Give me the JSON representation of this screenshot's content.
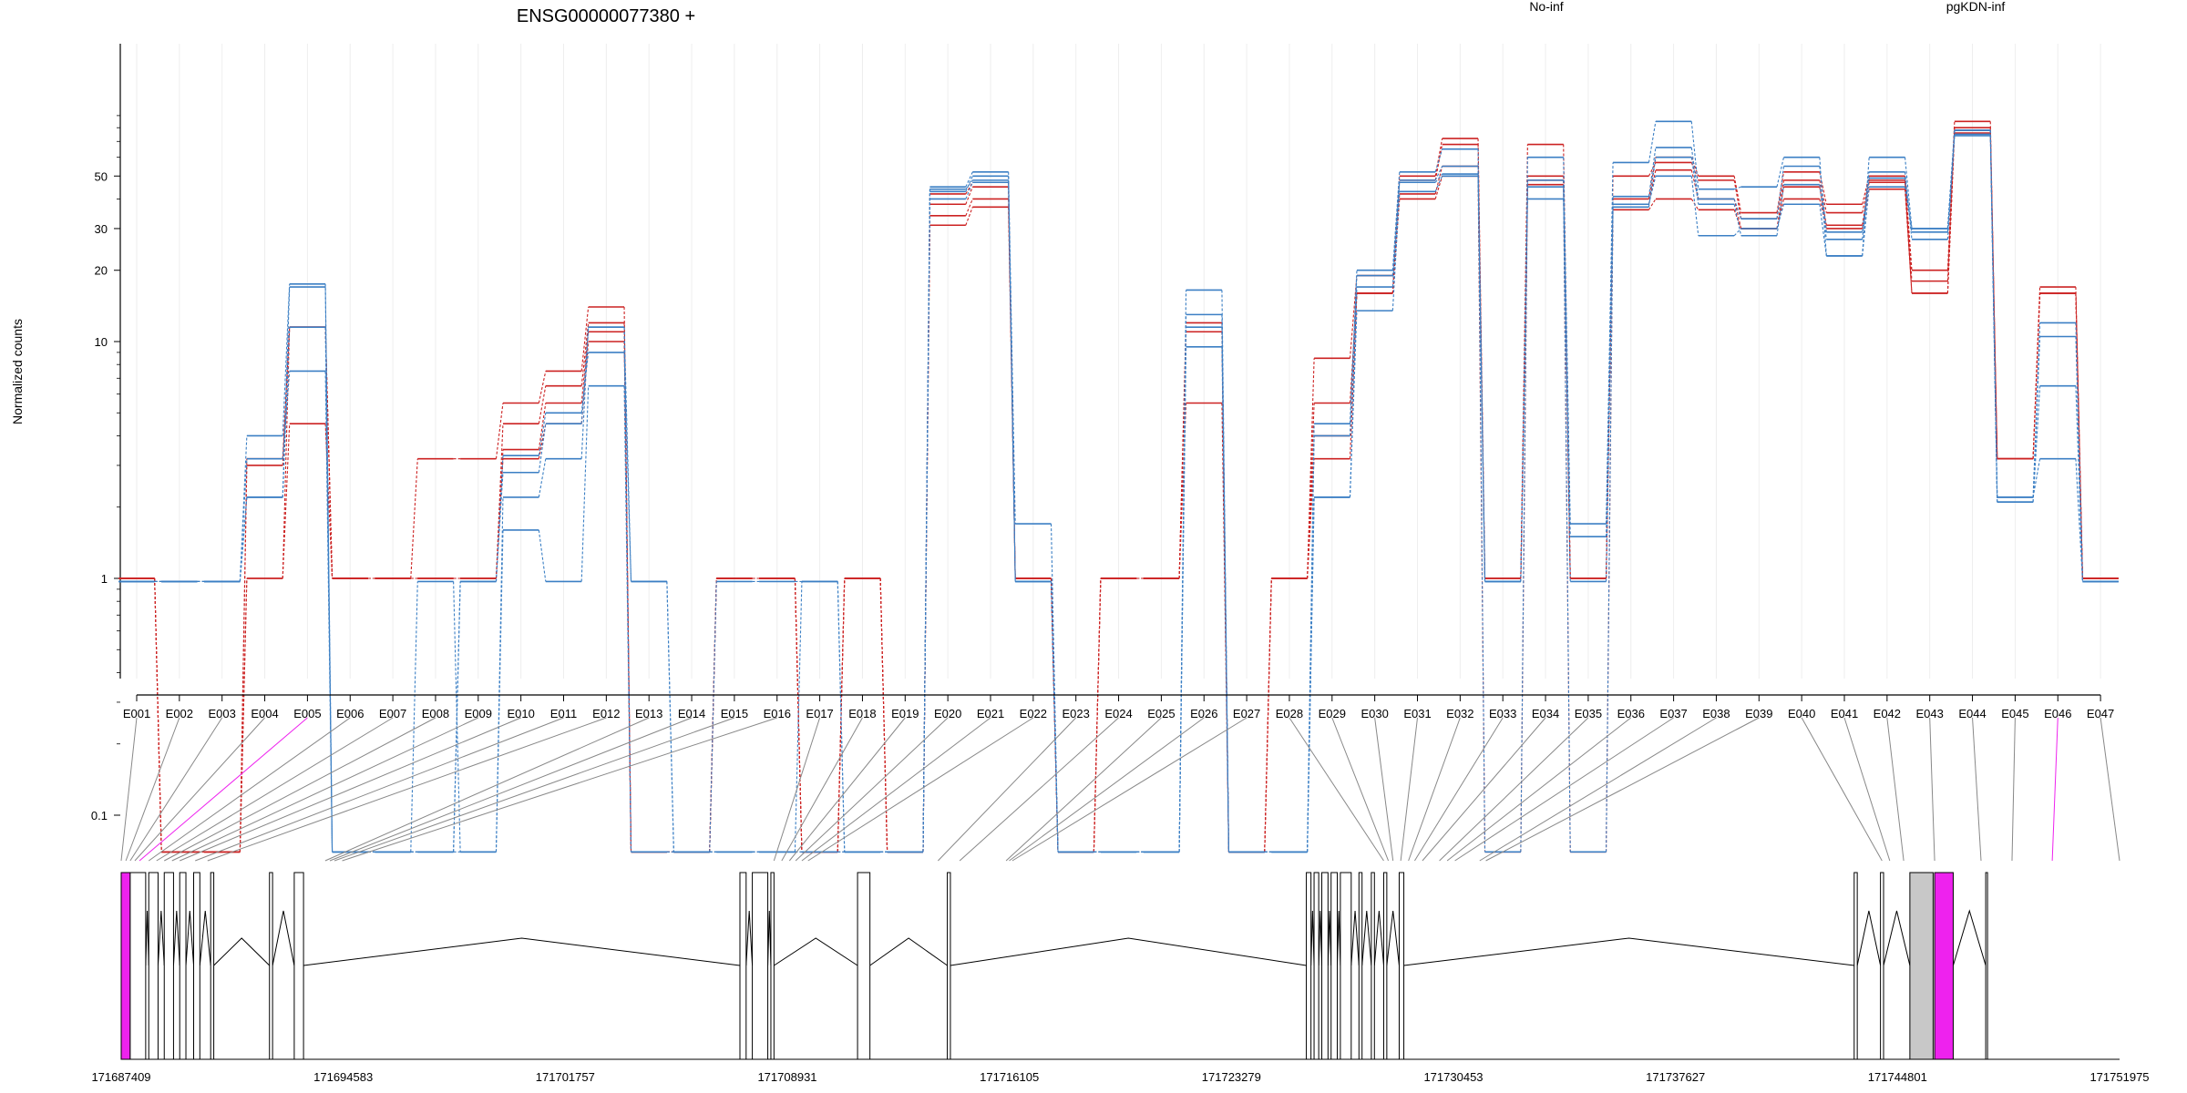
{
  "chart_data": {
    "type": "line",
    "title": "ENSG00000077380 +",
    "ylabel": "Normalized counts",
    "xlabel": "",
    "y_scale": "log",
    "y_ticks": [
      "0.1",
      "1",
      "10",
      "20",
      "30",
      "50"
    ],
    "legend": [
      {
        "name": "No-inf",
        "color": "#cc2222"
      },
      {
        "name": "pgKDN-inf",
        "color": "#3b7fc4"
      }
    ],
    "legend_placement": "top",
    "categories": [
      "E001",
      "E002",
      "E003",
      "E004",
      "E005",
      "E006",
      "E007",
      "E008",
      "E009",
      "E010",
      "E011",
      "E012",
      "E013",
      "E014",
      "E015",
      "E016",
      "E017",
      "E018",
      "E019",
      "E020",
      "E021",
      "E022",
      "E023",
      "E024",
      "E025",
      "E026",
      "E027",
      "E028",
      "E029",
      "E030",
      "E031",
      "E032",
      "E033",
      "E034",
      "E035",
      "E036",
      "E037",
      "E038",
      "E039",
      "E040",
      "E041",
      "E042",
      "E043",
      "E044",
      "E045",
      "E046",
      "E047"
    ],
    "series": [
      {
        "group": "No-inf",
        "color": "#cc2222",
        "values": [
          1,
          0.07,
          0.07,
          3.2,
          11.5,
          1,
          1,
          3.2,
          3.2,
          5.5,
          7.5,
          14,
          0.07,
          0.07,
          1,
          1,
          0.07,
          1,
          0.07,
          42,
          47,
          1,
          0.07,
          1,
          1,
          12,
          0.07,
          1,
          8.5,
          19,
          50,
          72,
          1,
          68,
          1,
          40,
          60,
          50,
          35,
          52,
          38,
          50,
          20,
          85,
          3.2,
          17,
          1
        ]
      },
      {
        "group": "No-inf",
        "color": "#cc2222",
        "values": [
          1,
          0.07,
          0.07,
          1,
          11.5,
          1,
          1,
          1,
          1,
          4.5,
          6.5,
          12,
          0.07,
          0.07,
          1,
          1,
          0.07,
          1,
          0.07,
          38,
          45,
          1,
          0.07,
          1,
          1,
          11,
          0.07,
          1,
          5.5,
          16,
          48,
          68,
          1,
          50,
          1,
          50,
          57,
          48,
          33,
          48,
          35,
          48,
          18,
          80,
          3.2,
          16,
          1
        ]
      },
      {
        "group": "No-inf",
        "color": "#cc2222",
        "values": [
          1,
          0.07,
          0.07,
          3,
          11.5,
          1,
          1,
          1,
          1,
          3.5,
          5.5,
          11,
          0.07,
          0.07,
          1,
          1,
          0.07,
          1,
          0.07,
          34,
          40,
          1,
          0.07,
          1,
          1,
          11,
          0.07,
          1,
          4,
          16,
          42,
          55,
          1,
          48,
          1,
          38,
          53,
          40,
          30,
          45,
          31,
          47,
          16,
          78,
          3.2,
          16,
          1
        ]
      },
      {
        "group": "No-inf",
        "color": "#cc2222",
        "values": [
          1,
          0.07,
          0.07,
          1,
          4.5,
          1,
          1,
          1,
          1,
          3.2,
          4.5,
          10,
          0.07,
          0.07,
          1,
          1,
          0.07,
          1,
          0.07,
          31,
          37,
          1,
          0.07,
          1,
          1,
          5.5,
          0.07,
          1,
          3.2,
          16,
          40,
          50,
          0.07,
          46,
          0.07,
          36,
          40,
          36,
          30,
          40,
          30,
          44,
          16,
          76,
          3.2,
          16,
          1
        ]
      },
      {
        "group": "pgKDN-inf",
        "color": "#3b7fc4",
        "values": [
          0.97,
          0.97,
          0.97,
          4,
          17.5,
          0.07,
          0.07,
          0.07,
          0.97,
          3.3,
          5,
          9,
          0.97,
          0.07,
          0.07,
          0.07,
          0.97,
          0.07,
          0.07,
          45,
          52,
          1.7,
          0.07,
          0.07,
          0.07,
          16.5,
          0.07,
          0.07,
          4.5,
          20,
          52,
          65,
          0.07,
          60,
          1.7,
          57,
          85,
          44,
          45,
          60,
          23,
          60,
          30,
          78,
          2.2,
          12,
          0.97
        ]
      },
      {
        "group": "pgKDN-inf",
        "color": "#3b7fc4",
        "values": [
          0.97,
          0.97,
          0.97,
          2.2,
          17,
          0.07,
          0.07,
          0.07,
          0.97,
          2.8,
          4.5,
          11.5,
          0.97,
          0.07,
          0.97,
          0.97,
          0.97,
          0.07,
          0.07,
          43,
          50,
          0.97,
          0.07,
          0.07,
          0.07,
          13,
          0.07,
          0.07,
          4,
          19,
          48,
          55,
          0.97,
          40,
          1.5,
          41,
          66,
          40,
          33,
          55,
          29,
          52,
          27,
          74,
          2.1,
          10.5,
          0.97
        ]
      },
      {
        "group": "pgKDN-inf",
        "color": "#3b7fc4",
        "values": [
          0.97,
          0.97,
          0.97,
          3.2,
          7.5,
          0.07,
          0.07,
          0.97,
          0.07,
          1.6,
          0.97,
          6.5,
          0.07,
          0.07,
          0.07,
          0.07,
          0.07,
          0.07,
          0.07,
          40,
          47,
          0.97,
          0.07,
          0.07,
          0.07,
          11.5,
          0.07,
          0.07,
          2.2,
          13.5,
          43,
          50,
          0.97,
          48,
          0.07,
          38,
          50,
          28,
          30,
          38,
          23,
          45,
          30,
          78,
          2.1,
          6.5,
          0.97
        ]
      },
      {
        "group": "pgKDN-inf",
        "color": "#3b7fc4",
        "values": [
          0.97,
          0.97,
          0.97,
          2.2,
          11.5,
          0.07,
          0.07,
          0.07,
          0.07,
          2.2,
          3.2,
          11.5,
          0.07,
          0.07,
          0.07,
          0.07,
          0.07,
          0.07,
          0.07,
          44,
          48,
          0.97,
          0.07,
          0.07,
          0.07,
          9.5,
          0.07,
          0.07,
          2.2,
          17,
          47,
          51,
          0.97,
          45,
          0.97,
          37,
          60,
          38,
          28,
          46,
          27,
          49,
          29,
          75,
          2.2,
          3.2,
          0.97
        ]
      }
    ]
  },
  "gene_model": {
    "coordinate_labels": [
      "171687409",
      "171694583",
      "171701757",
      "171708931",
      "171716105",
      "171723279",
      "171730453",
      "171737627",
      "171744801",
      "171751975"
    ],
    "highlight_color": "#ee22ee",
    "exon_fill": "#ffffff",
    "constitutive_fill": "#c8c8c8"
  }
}
